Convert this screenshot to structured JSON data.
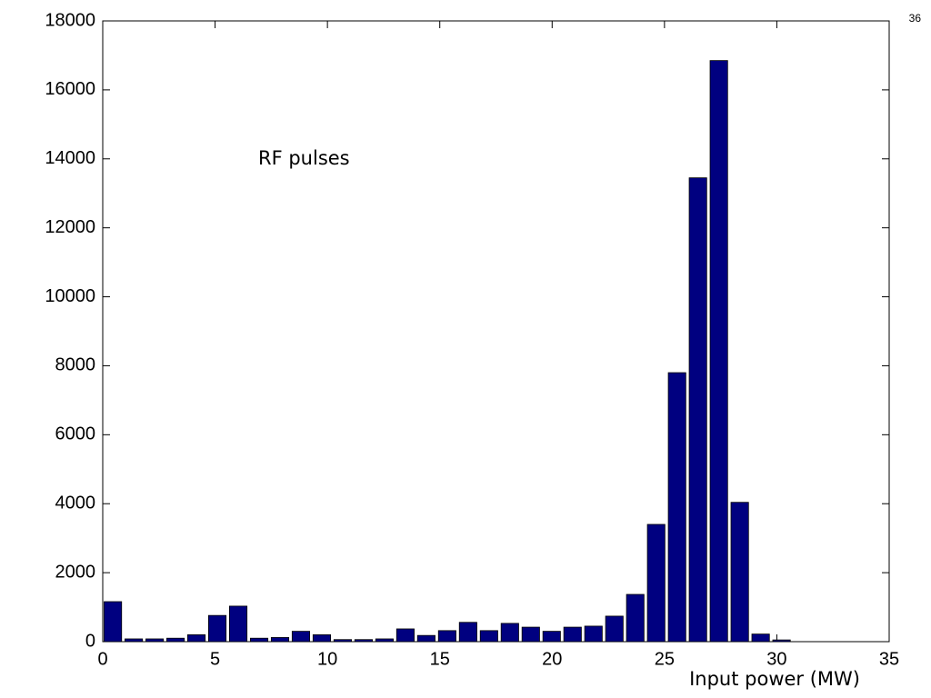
{
  "slide_number": "36",
  "chart_data": {
    "type": "bar",
    "annotation": "RF pulses",
    "x_label": "Input power (MW)",
    "x": [
      0.45,
      1.38,
      2.31,
      3.24,
      4.17,
      5.1,
      6.03,
      6.96,
      7.89,
      8.82,
      9.75,
      10.68,
      11.61,
      12.54,
      13.47,
      14.4,
      15.33,
      16.26,
      17.19,
      18.12,
      19.05,
      19.98,
      20.91,
      21.84,
      22.77,
      23.7,
      24.63,
      25.56,
      26.49,
      27.42,
      28.35,
      29.28,
      30.21
    ],
    "values": [
      1160,
      80,
      80,
      100,
      200,
      760,
      1030,
      100,
      120,
      300,
      200,
      60,
      60,
      80,
      370,
      180,
      320,
      560,
      320,
      530,
      420,
      300,
      420,
      450,
      740,
      1370,
      3400,
      7800,
      13450,
      16850,
      4040,
      220,
      50
    ],
    "color": "#000080",
    "xlim": [
      0,
      35
    ],
    "xticks": [
      0,
      5,
      10,
      15,
      20,
      25,
      30,
      35
    ],
    "ylim": [
      0,
      18000
    ],
    "yticks": [
      0,
      2000,
      4000,
      6000,
      8000,
      10000,
      12000,
      14000,
      16000,
      18000
    ]
  }
}
